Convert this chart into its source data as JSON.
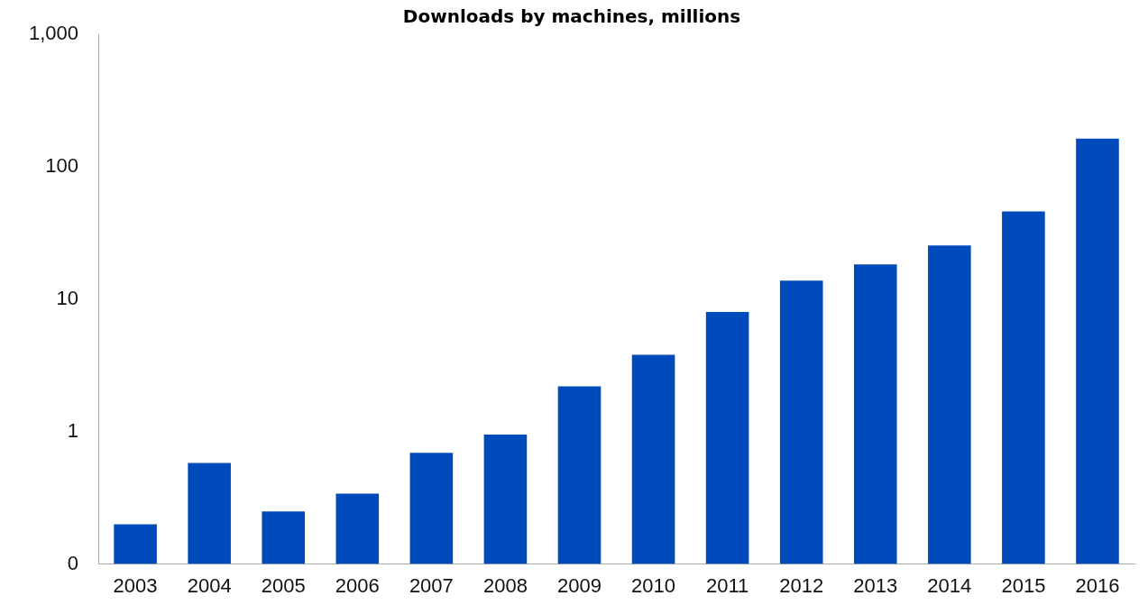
{
  "chart_data": {
    "type": "bar",
    "title": "Downloads by machines, millions",
    "categories": [
      "2003",
      "2004",
      "2005",
      "2006",
      "2007",
      "2008",
      "2009",
      "2010",
      "2011",
      "2012",
      "2013",
      "2014",
      "2015",
      "2016"
    ],
    "values": [
      0.2,
      0.58,
      0.25,
      0.34,
      0.69,
      0.95,
      2.2,
      3.8,
      8,
      13.8,
      18.3,
      25.4,
      46,
      163
    ],
    "color": "#004bbb",
    "log": "y",
    "ylim": [
      0.1,
      1000
    ],
    "yticks": [
      {
        "value": 0.1,
        "label": "0"
      },
      {
        "value": 1,
        "label": "1"
      },
      {
        "value": 10,
        "label": "10"
      },
      {
        "value": 100,
        "label": "100"
      },
      {
        "value": 1000,
        "label": "1,000"
      }
    ],
    "grid": false,
    "legend": false
  }
}
